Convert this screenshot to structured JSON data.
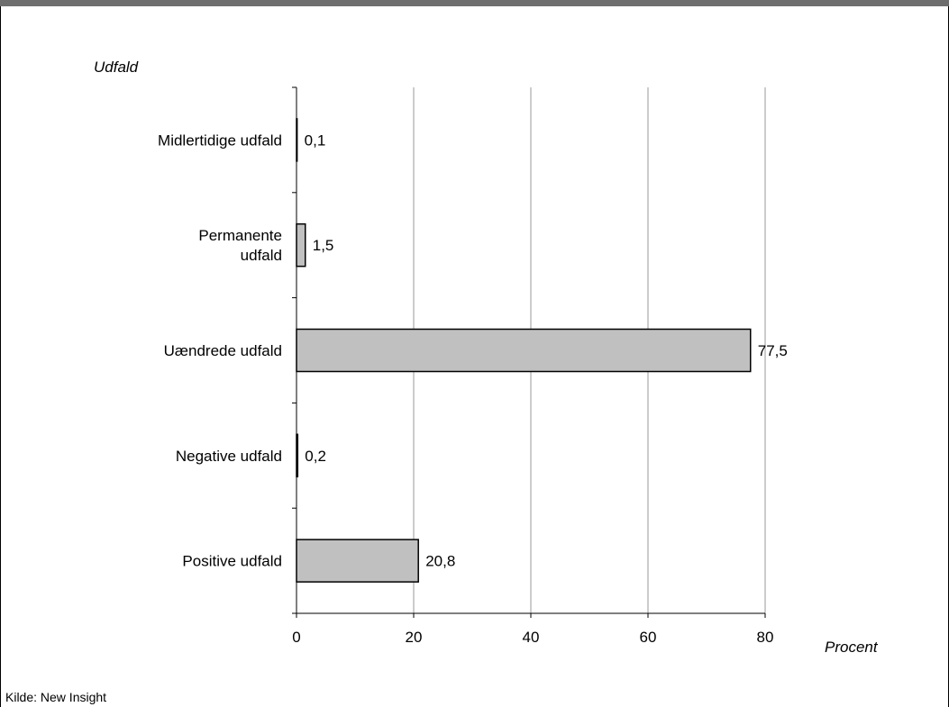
{
  "chart_data": {
    "type": "bar",
    "orientation": "horizontal",
    "ylabel": "Udfald",
    "xlabel": "Procent",
    "categories": [
      [
        "Midlertidige udfald"
      ],
      [
        "Permanente",
        "udfald"
      ],
      [
        "Uændrede udfald"
      ],
      [
        "Negative udfald"
      ],
      [
        "Positive udfald"
      ]
    ],
    "values": [
      0.1,
      1.5,
      77.5,
      0.2,
      20.8
    ],
    "value_labels": [
      "0,1",
      "1,5",
      "77,5",
      "0,2",
      "20,8"
    ],
    "xlim": [
      0,
      80
    ],
    "xticks": [
      0,
      20,
      40,
      60,
      80
    ],
    "xtick_labels": [
      "0",
      "20",
      "40",
      "60",
      "80"
    ],
    "grid": "vertical",
    "bar_color": "#c0c0c0",
    "bar_edge_color": "#000000"
  },
  "footer": {
    "source": "Kilde: New Insight"
  },
  "colors": {
    "topbar": "#6e6e6e",
    "gridline": "#999999"
  }
}
